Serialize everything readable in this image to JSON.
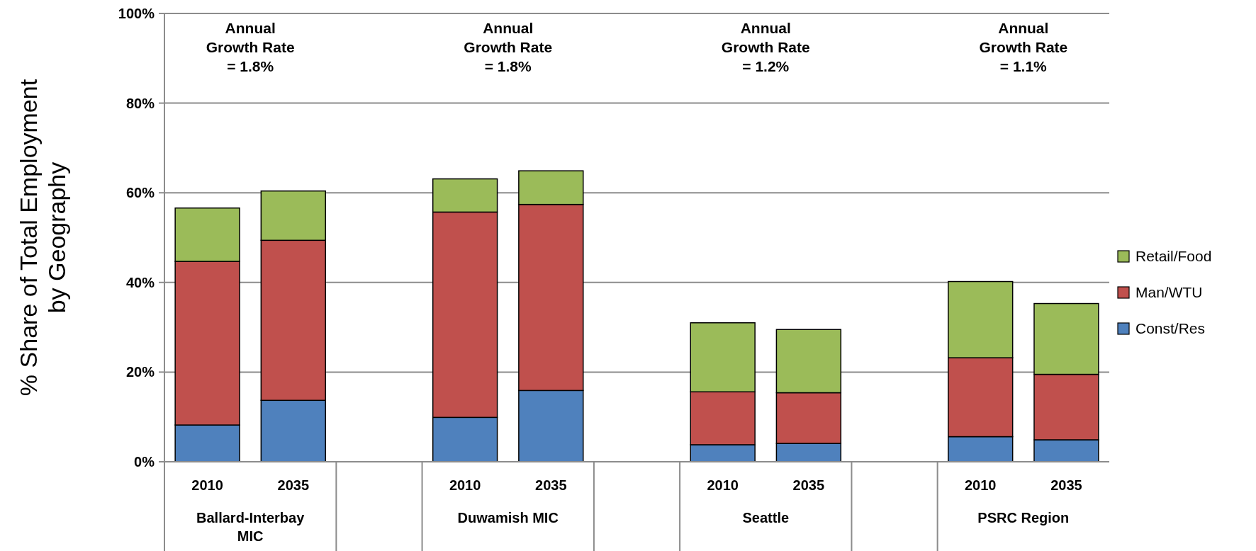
{
  "chart_data": {
    "type": "bar",
    "stacked": true,
    "ylabel": "% Share of Total Employment\nby Geography",
    "categories": [
      "2010",
      "2035",
      null,
      "2010",
      "2035",
      null,
      "2010",
      "2035",
      null,
      "2010",
      "2035"
    ],
    "series": [
      {
        "name": "Const/Res",
        "color": "#4f81bd",
        "values": [
          8.2,
          13.7,
          null,
          9.9,
          15.9,
          null,
          3.8,
          4.1,
          null,
          5.6,
          4.9
        ]
      },
      {
        "name": "Man/WTU",
        "color": "#c0504d",
        "values": [
          36.5,
          35.7,
          null,
          45.8,
          41.5,
          null,
          11.8,
          11.3,
          null,
          17.6,
          14.6
        ]
      },
      {
        "name": "Retail/Food",
        "color": "#9bbb59",
        "values": [
          11.9,
          11.0,
          null,
          7.4,
          7.5,
          null,
          15.4,
          14.1,
          null,
          17.0,
          15.8
        ]
      }
    ],
    "ylim": [
      0,
      100
    ],
    "yticks": [
      {
        "value": 0,
        "label": "0%"
      },
      {
        "value": 20,
        "label": "20%"
      },
      {
        "value": 40,
        "label": "40%"
      },
      {
        "value": 60,
        "label": "60%"
      },
      {
        "value": 80,
        "label": "80%"
      },
      {
        "value": 100,
        "label": "100%"
      }
    ],
    "grid": "y",
    "legend": "right",
    "annotations": [
      "Annual\nGrowth Rate\n= 1.8%",
      "Annual\nGrowth Rate\n= 1.8%",
      "Annual\nGrowth Rate\n= 1.2%",
      "Annual\nGrowth Rate\n= 1.1%",
      "Ballard-Interbay\nMIC",
      "Duwamish MIC",
      "Seattle",
      "PSRC Region"
    ]
  }
}
